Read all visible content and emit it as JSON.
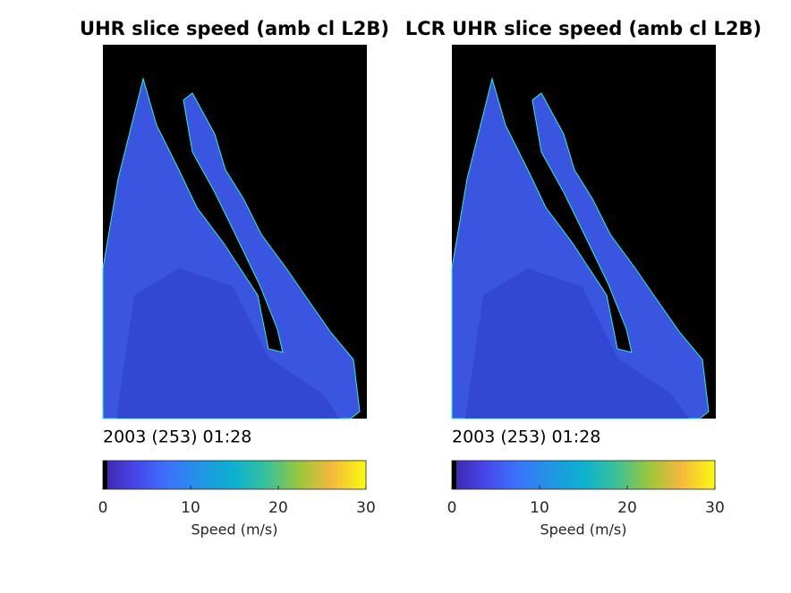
{
  "panels": [
    {
      "title": "UHR slice speed (amb cl L2B)",
      "timestamp": "2003 (253) 01:28",
      "colorbar": {
        "lim": [
          0,
          30
        ],
        "ticks": [
          0,
          10,
          20,
          30
        ],
        "label": "Speed (m/s)"
      }
    },
    {
      "title": "LCR UHR slice speed (amb cl L2B)",
      "timestamp": "2003 (253) 01:28",
      "colorbar": {
        "lim": [
          0,
          30
        ],
        "ticks": [
          0,
          10,
          20,
          30
        ],
        "label": "Speed (m/s)"
      }
    }
  ]
}
